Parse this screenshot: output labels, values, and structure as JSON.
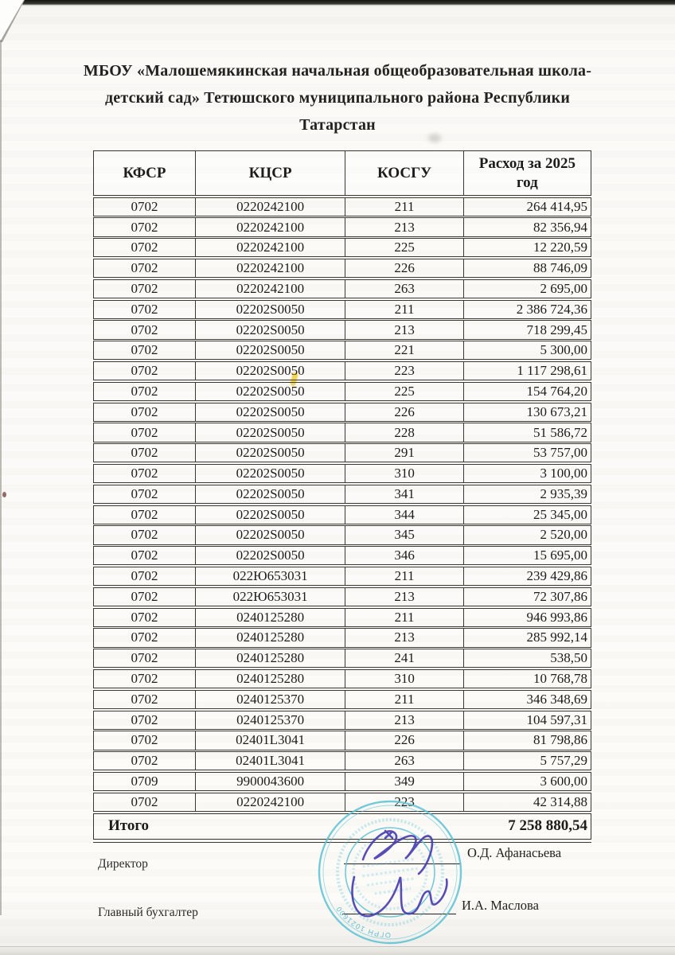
{
  "title": {
    "lines": [
      "МБОУ «Малошемякинская начальная общеобразовательная школа-",
      "детский сад» Тетюшского муниципального района Республики",
      "Татарстан"
    ]
  },
  "table": {
    "headers": [
      "КФСР",
      "КЦСР",
      "КОСГУ",
      "Расход за 2025 год"
    ],
    "rows": [
      [
        "0702",
        "0220242100",
        "211",
        "264 414,95"
      ],
      [
        "0702",
        "0220242100",
        "213",
        "82 356,94"
      ],
      [
        "0702",
        "0220242100",
        "225",
        "12 220,59"
      ],
      [
        "0702",
        "0220242100",
        "226",
        "88 746,09"
      ],
      [
        "0702",
        "0220242100",
        "263",
        "2 695,00"
      ],
      [
        "0702",
        "02202S0050",
        "211",
        "2 386 724,36"
      ],
      [
        "0702",
        "02202S0050",
        "213",
        "718 299,45"
      ],
      [
        "0702",
        "02202S0050",
        "221",
        "5 300,00"
      ],
      [
        "0702",
        "02202S0050",
        "223",
        "1 117 298,61"
      ],
      [
        "0702",
        "02202S0050",
        "225",
        "154 764,20"
      ],
      [
        "0702",
        "02202S0050",
        "226",
        "130 673,21"
      ],
      [
        "0702",
        "02202S0050",
        "228",
        "51 586,72"
      ],
      [
        "0702",
        "02202S0050",
        "291",
        "53 757,00"
      ],
      [
        "0702",
        "02202S0050",
        "310",
        "3 100,00"
      ],
      [
        "0702",
        "02202S0050",
        "341",
        "2 935,39"
      ],
      [
        "0702",
        "02202S0050",
        "344",
        "25 345,00"
      ],
      [
        "0702",
        "02202S0050",
        "345",
        "2 520,00"
      ],
      [
        "0702",
        "02202S0050",
        "346",
        "15 695,00"
      ],
      [
        "0702",
        "022Ю653031",
        "211",
        "239 429,86"
      ],
      [
        "0702",
        "022Ю653031",
        "213",
        "72 307,86"
      ],
      [
        "0702",
        "0240125280",
        "211",
        "946 993,86"
      ],
      [
        "0702",
        "0240125280",
        "213",
        "285 992,14"
      ],
      [
        "0702",
        "0240125280",
        "241",
        "538,50"
      ],
      [
        "0702",
        "0240125280",
        "310",
        "10 768,78"
      ],
      [
        "0702",
        "0240125370",
        "211",
        "346 348,69"
      ],
      [
        "0702",
        "0240125370",
        "213",
        "104 597,31"
      ],
      [
        "0702",
        "02401L3041",
        "226",
        "81 798,86"
      ],
      [
        "0702",
        "02401L3041",
        "263",
        "5 757,29"
      ],
      [
        "0709",
        "9900043600",
        "349",
        "3 600,00"
      ],
      [
        "0702",
        "0220242100",
        "223",
        "42 314,88"
      ]
    ],
    "total_label": "Итого",
    "total_value": "7 258 880,54"
  },
  "signoff": {
    "director_label": "Директор",
    "director_name": "О.Д. Афанасьева",
    "accountant_label": "Главный бухгалтер",
    "accountant_name": "И.А. Маслова"
  },
  "stamp": {
    "ogrn_text": "ОГРН 1021600"
  },
  "colors": {
    "ink": "#1d1c19",
    "table_border": "#3a3931",
    "stamp_blue": "#5ec2d4",
    "signature_ink": "#4b3eb0",
    "highlight_yellow": "#f2d032"
  }
}
